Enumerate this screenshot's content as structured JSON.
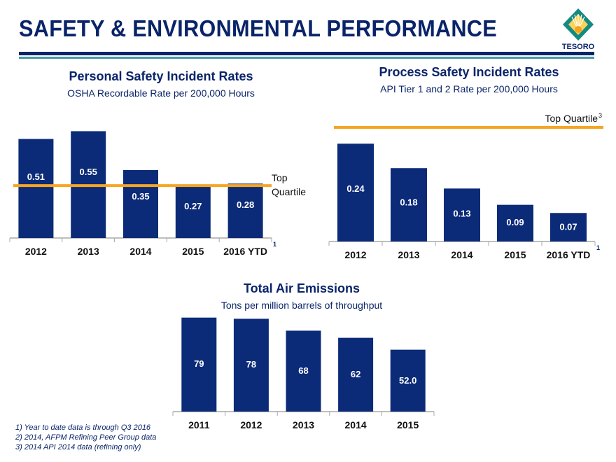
{
  "header": {
    "title": "SAFETY & ENVIRONMENTAL PERFORMANCE",
    "logo_text": "TESORO",
    "colors": {
      "navy": "#0a2469",
      "teal": "#4a9aa0",
      "orange": "#f5a623",
      "bar": "#0b2a78"
    }
  },
  "chart_data": [
    {
      "type": "bar",
      "title": "Personal Safety Incident Rates",
      "subtitle": "OSHA Recordable Rate per 200,000 Hours",
      "categories": [
        "2012",
        "2013",
        "2014",
        "2015",
        "2016 YTD"
      ],
      "category_footnote": "1",
      "values": [
        0.51,
        0.55,
        0.35,
        0.27,
        0.28
      ],
      "value_labels": [
        "0.51",
        "0.55",
        "0.35",
        "0.27",
        "0.28"
      ],
      "reference_line": {
        "label_lines": [
          "Top",
          "Quartile"
        ],
        "footnote": "2",
        "value": 0.27
      },
      "ylim": [
        0,
        0.62
      ],
      "grid": false
    },
    {
      "type": "bar",
      "title": "Process Safety Incident Rates",
      "subtitle": "API Tier 1 and 2 Rate per 200,000 Hours",
      "categories": [
        "2012",
        "2013",
        "2014",
        "2015",
        "2016 YTD"
      ],
      "category_footnote": "1",
      "values": [
        0.24,
        0.18,
        0.13,
        0.09,
        0.07
      ],
      "value_labels": [
        "0.24",
        "0.18",
        "0.13",
        "0.09",
        "0.07"
      ],
      "reference_line": {
        "label_lines": [
          "Top Quartile"
        ],
        "footnote": "3",
        "value": 0.28
      },
      "ylim": [
        0,
        0.28
      ],
      "grid": false
    },
    {
      "type": "bar",
      "title": "Total Air Emissions",
      "subtitle": "Tons per million barrels of throughput",
      "categories": [
        "2011",
        "2012",
        "2013",
        "2014",
        "2015"
      ],
      "values": [
        79,
        78,
        68,
        62,
        52.0
      ],
      "value_labels": [
        "79",
        "78",
        "68",
        "62",
        "52.0"
      ],
      "ylim": [
        0,
        80
      ],
      "grid": false
    }
  ],
  "footnotes": [
    "1) Year to date data is through Q3 2016",
    "2) 2014, AFPM Refining Peer Group data",
    "3) 2014 API 2014 data (refining only)"
  ]
}
